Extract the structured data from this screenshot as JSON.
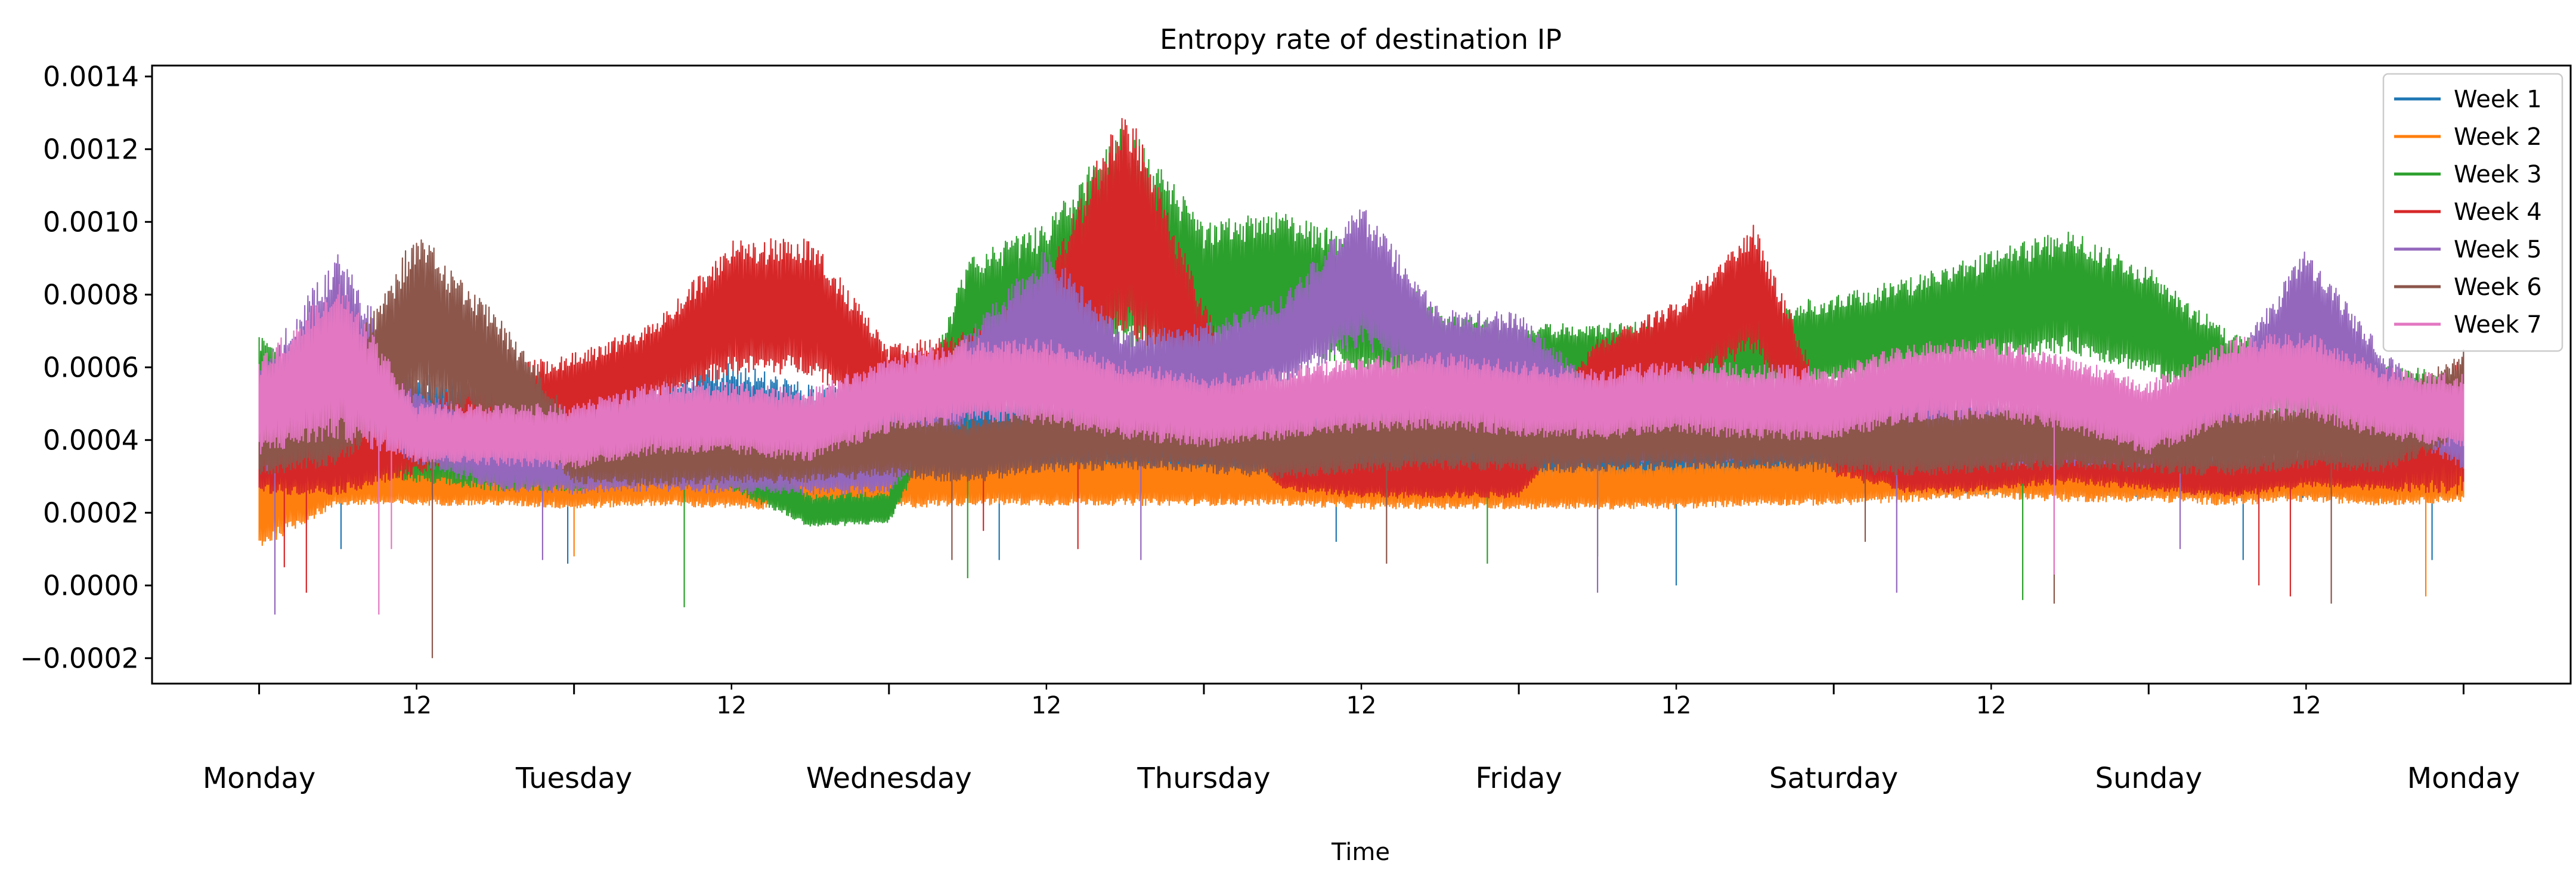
{
  "chart_data": {
    "type": "line",
    "title": "Entropy rate of destination IP",
    "xlabel": "Time",
    "ylabel": "",
    "ylim": [
      -0.00027,
      0.00143
    ],
    "yticks": [
      -0.0002,
      0.0,
      0.0002,
      0.0004,
      0.0006,
      0.0008,
      0.001,
      0.0012,
      0.0014
    ],
    "ytick_labels": [
      "−0.0002",
      "0.0000",
      "0.0002",
      "0.0004",
      "0.0006",
      "0.0008",
      "0.0010",
      "0.0012",
      "0.0014"
    ],
    "x_unit": "day of week (0 = Monday 00:00, 7 = next Monday 00:00)",
    "xlim": [
      -0.34,
      7.34
    ],
    "x_major_ticks": [
      0,
      1,
      2,
      3,
      4,
      5,
      6,
      7
    ],
    "x_major_labels": [
      "Monday",
      "Tuesday",
      "Wednesday",
      "Thursday",
      "Friday",
      "Saturday",
      "Sunday",
      "Monday"
    ],
    "x_minor_ticks": [
      0.5,
      1.5,
      2.5,
      3.5,
      4.5,
      5.5,
      6.5
    ],
    "x_minor_label": "12",
    "legend_position": "upper right",
    "grid": false,
    "x": [
      0,
      0.25,
      0.5,
      0.75,
      1,
      1.25,
      1.5,
      1.75,
      2,
      2.25,
      2.5,
      2.75,
      3,
      3.25,
      3.5,
      3.75,
      4,
      4.25,
      4.5,
      4.75,
      5,
      5.25,
      5.5,
      5.75,
      6,
      6.25,
      6.5,
      6.75,
      7
    ],
    "series": [
      {
        "name": "Week 1",
        "color": "#1f77b4",
        "values": [
          0.00045,
          0.00044,
          0.00046,
          0.00045,
          0.00044,
          0.00043,
          0.00048,
          0.00044,
          0.00044,
          0.00045,
          0.00044,
          0.00043,
          0.00044,
          0.00043,
          0.00045,
          0.00043,
          0.00042,
          0.00043,
          0.00042,
          0.00033,
          0.00033,
          0.00031,
          0.00032,
          0.00033,
          0.00031,
          0.00032,
          0.00031,
          0.0003,
          0.0003
        ],
        "low": [
          0.00018,
          0.0003,
          0.00032,
          0.00028,
          0.00028,
          0.00028,
          0.00027,
          0.00028,
          0.00027,
          0.00026,
          0.00026,
          0.00026,
          0.00026,
          0.00026,
          0.00026,
          0.00027,
          0.00026,
          0.00026,
          0.00025,
          0.00027,
          0.00027,
          0.00025,
          0.00025,
          0.00025,
          0.00024,
          0.00025,
          0.00024,
          0.00024,
          0.00024
        ],
        "high": [
          0.00062,
          0.00058,
          0.00058,
          0.00058,
          0.00058,
          0.00058,
          0.00062,
          0.00055,
          0.00056,
          0.00056,
          0.00054,
          0.00053,
          0.00054,
          0.00052,
          0.00054,
          0.00052,
          0.00053,
          0.00052,
          0.00051,
          0.0004,
          0.0004,
          0.00038,
          0.00038,
          0.00038,
          0.00037,
          0.00037,
          0.00036,
          0.00036,
          0.00036
        ],
        "dips": [
          [
            0.26,
            0.0001
          ],
          [
            0.98,
            6e-05
          ],
          [
            2.35,
            7e-05
          ],
          [
            3.42,
            0.00012
          ],
          [
            4.5,
            0.0
          ],
          [
            6.3,
            7e-05
          ],
          [
            6.9,
            7e-05
          ]
        ]
      },
      {
        "name": "Week 2",
        "color": "#ff7f0e",
        "values": [
          0.0003,
          0.00029,
          0.00029,
          0.00028,
          0.00027,
          0.00028,
          0.00027,
          0.00027,
          0.00029,
          0.0003,
          0.00029,
          0.00029,
          0.00028,
          0.00028,
          0.00027,
          0.00027,
          0.00027,
          0.00027,
          0.00027,
          0.00028,
          0.00029,
          0.0003,
          0.00031,
          0.0003,
          0.0003,
          0.00029,
          0.00029,
          0.00028,
          0.00029
        ],
        "low": [
          0.0001,
          0.00022,
          0.00022,
          0.00022,
          0.00021,
          0.00022,
          0.00021,
          0.00021,
          0.00021,
          0.00022,
          0.00022,
          0.00022,
          0.00022,
          0.00022,
          0.00021,
          0.00021,
          0.00021,
          0.00021,
          0.00021,
          0.00022,
          0.00022,
          0.00023,
          0.00024,
          0.00023,
          0.00023,
          0.00022,
          0.00023,
          0.00022,
          0.00023
        ],
        "high": [
          0.00036,
          0.00035,
          0.00034,
          0.00034,
          0.00034,
          0.00035,
          0.00034,
          0.00034,
          0.00036,
          0.00037,
          0.00036,
          0.00036,
          0.00035,
          0.00035,
          0.00034,
          0.00034,
          0.00034,
          0.00034,
          0.00034,
          0.00035,
          0.00036,
          0.00037,
          0.00038,
          0.00037,
          0.00037,
          0.00036,
          0.00036,
          0.00035,
          0.00036
        ],
        "dips": [
          [
            1.0,
            8e-05
          ],
          [
            6.88,
            -3e-05
          ]
        ]
      },
      {
        "name": "Week 3",
        "color": "#2ca02c",
        "values": [
          0.0005,
          0.0004,
          0.00035,
          0.00032,
          0.00032,
          0.00035,
          0.00033,
          0.0002,
          0.00021,
          0.00075,
          0.0008,
          0.001,
          0.00085,
          0.0009,
          0.0008,
          0.00065,
          0.00062,
          0.00062,
          0.00062,
          0.00064,
          0.00068,
          0.00072,
          0.00078,
          0.00085,
          0.00075,
          0.0006,
          0.00055,
          0.00052,
          0.0005
        ],
        "low": [
          0.00035,
          0.00032,
          0.00028,
          0.00026,
          0.00026,
          0.00028,
          0.00026,
          0.00016,
          0.00017,
          0.00058,
          0.0006,
          0.00064,
          0.00062,
          0.00066,
          0.00058,
          0.00054,
          0.00052,
          0.00052,
          0.00052,
          0.00053,
          0.00055,
          0.00058,
          0.00062,
          0.00064,
          0.00058,
          0.00048,
          0.00045,
          0.00043,
          0.00042
        ],
        "high": [
          0.0007,
          0.0006,
          0.00046,
          0.00042,
          0.00042,
          0.00045,
          0.00042,
          0.00025,
          0.00026,
          0.0009,
          0.001,
          0.00128,
          0.001,
          0.00103,
          0.00095,
          0.00075,
          0.00072,
          0.00072,
          0.00073,
          0.00076,
          0.0008,
          0.00085,
          0.00092,
          0.00098,
          0.00088,
          0.0007,
          0.00064,
          0.00061,
          0.00058
        ],
        "dips": [
          [
            1.35,
            -6e-05
          ],
          [
            2.25,
            2e-05
          ],
          [
            3.9,
            6e-05
          ],
          [
            4.25,
            8e-05
          ],
          [
            5.6,
            -4e-05
          ]
        ]
      },
      {
        "name": "Week 4",
        "color": "#d62728",
        "values": [
          0.00035,
          0.00035,
          0.0004,
          0.0005,
          0.00053,
          0.0006,
          0.00075,
          0.0008,
          0.00055,
          0.00058,
          0.0007,
          0.00095,
          0.00065,
          0.00032,
          0.0003,
          0.0003,
          0.0003,
          0.00058,
          0.00065,
          0.00085,
          0.00038,
          0.00032,
          0.00033,
          0.00035,
          0.00032,
          0.0003,
          0.00033,
          0.00032,
          0.00031
        ],
        "low": [
          0.00025,
          0.00025,
          0.0003,
          0.00036,
          0.00042,
          0.0005,
          0.00058,
          0.00058,
          0.00045,
          0.00046,
          0.00055,
          0.00068,
          0.0005,
          0.00026,
          0.00024,
          0.00024,
          0.00024,
          0.0005,
          0.00055,
          0.00064,
          0.0003,
          0.00025,
          0.00026,
          0.00028,
          0.00026,
          0.00024,
          0.00027,
          0.00026,
          0.00025
        ],
        "high": [
          0.00045,
          0.00044,
          0.0005,
          0.0006,
          0.00064,
          0.00072,
          0.00095,
          0.00096,
          0.00066,
          0.0007,
          0.00086,
          0.00134,
          0.00078,
          0.00038,
          0.00037,
          0.00037,
          0.00037,
          0.00068,
          0.00078,
          0.001,
          0.00045,
          0.00038,
          0.00039,
          0.00041,
          0.00039,
          0.00036,
          0.00039,
          0.00038,
          0.00064
        ],
        "dips": [
          [
            0.08,
            5e-05
          ],
          [
            0.15,
            -2e-05
          ],
          [
            2.3,
            0.00015
          ],
          [
            2.6,
            0.0001
          ],
          [
            6.35,
            0.0
          ],
          [
            6.45,
            -3e-05
          ]
        ]
      },
      {
        "name": "Week 5",
        "color": "#9467bd",
        "values": [
          0.00045,
          0.00065,
          0.00045,
          0.00035,
          0.00033,
          0.00034,
          0.00033,
          0.00033,
          0.00033,
          0.00058,
          0.0008,
          0.00058,
          0.0006,
          0.00068,
          0.0009,
          0.00065,
          0.00062,
          0.00045,
          0.00042,
          0.00044,
          0.00045,
          0.00044,
          0.00042,
          0.00042,
          0.0004,
          0.00048,
          0.0008,
          0.00055,
          0.0004
        ],
        "low": [
          0.0003,
          0.00045,
          0.00033,
          0.00026,
          0.00025,
          0.00026,
          0.00025,
          0.00025,
          0.00025,
          0.00045,
          0.00058,
          0.00046,
          0.00048,
          0.00055,
          0.00066,
          0.00052,
          0.00048,
          0.00035,
          0.00033,
          0.00034,
          0.00035,
          0.00034,
          0.00033,
          0.00033,
          0.00032,
          0.00037,
          0.00058,
          0.00043,
          0.00032
        ],
        "high": [
          0.0006,
          0.00092,
          0.00056,
          0.00044,
          0.00042,
          0.00043,
          0.00042,
          0.00042,
          0.00042,
          0.0007,
          0.00093,
          0.0007,
          0.00072,
          0.0008,
          0.00105,
          0.00076,
          0.00075,
          0.00055,
          0.00052,
          0.00054,
          0.00055,
          0.00054,
          0.00052,
          0.00052,
          0.0005,
          0.0006,
          0.00093,
          0.00064,
          0.00048
        ],
        "dips": [
          [
            0.05,
            -8e-05
          ],
          [
            0.9,
            7e-05
          ],
          [
            2.8,
            7e-05
          ],
          [
            4.25,
            -2e-05
          ],
          [
            5.2,
            -2e-05
          ],
          [
            6.1,
            0.0001
          ]
        ]
      },
      {
        "name": "Week 6",
        "color": "#8c564b",
        "values": [
          0.0004,
          0.00045,
          0.0007,
          0.0006,
          0.00038,
          0.00037,
          0.00038,
          0.00038,
          0.0004,
          0.00038,
          0.00042,
          0.00043,
          0.00042,
          0.0004,
          0.00042,
          0.00043,
          0.00042,
          0.00042,
          0.00043,
          0.00043,
          0.00042,
          0.0004,
          0.00042,
          0.00043,
          0.00042,
          0.00041,
          0.00043,
          0.00042,
          0.00055
        ],
        "low": [
          0.0003,
          0.00033,
          0.0005,
          0.00045,
          0.00028,
          0.00027,
          0.00028,
          0.00028,
          0.0003,
          0.00028,
          0.00031,
          0.00032,
          0.00031,
          0.00029,
          0.00031,
          0.00032,
          0.00031,
          0.00031,
          0.00032,
          0.00032,
          0.00031,
          0.0003,
          0.00031,
          0.00032,
          0.00031,
          0.0003,
          0.00032,
          0.00031,
          0.0004
        ],
        "high": [
          0.0005,
          0.00058,
          0.00098,
          0.00075,
          0.00046,
          0.00045,
          0.00046,
          0.00046,
          0.00048,
          0.00046,
          0.00051,
          0.00052,
          0.0005,
          0.00048,
          0.0005,
          0.00052,
          0.0005,
          0.0005,
          0.00052,
          0.00052,
          0.0005,
          0.00049,
          0.0005,
          0.00052,
          0.0005,
          0.00049,
          0.00052,
          0.00051,
          0.00065
        ],
        "dips": [
          [
            0.55,
            -0.0002
          ],
          [
            2.2,
            7e-05
          ],
          [
            3.58,
            6e-05
          ],
          [
            5.1,
            0.00012
          ],
          [
            5.7,
            -5e-05
          ],
          [
            6.58,
            -5e-05
          ]
        ]
      },
      {
        "name": "Week 7",
        "color": "#e377c2",
        "values": [
          0.00048,
          0.00055,
          0.00042,
          0.00042,
          0.0004,
          0.00045,
          0.00045,
          0.00043,
          0.00052,
          0.00055,
          0.00055,
          0.0005,
          0.00048,
          0.0005,
          0.00052,
          0.00053,
          0.00052,
          0.0005,
          0.00052,
          0.0005,
          0.0005,
          0.00055,
          0.00056,
          0.00052,
          0.00045,
          0.00055,
          0.00058,
          0.0005,
          0.00048
        ],
        "low": [
          0.00036,
          0.0004,
          0.00034,
          0.00033,
          0.00032,
          0.00036,
          0.00036,
          0.00034,
          0.00042,
          0.00045,
          0.00044,
          0.0004,
          0.00038,
          0.0004,
          0.00042,
          0.00043,
          0.00041,
          0.0004,
          0.00042,
          0.0004,
          0.0004,
          0.00045,
          0.00046,
          0.00042,
          0.00036,
          0.00044,
          0.00046,
          0.0004,
          0.00038
        ],
        "high": [
          0.00062,
          0.00085,
          0.0005,
          0.0005,
          0.0005,
          0.00056,
          0.00056,
          0.00054,
          0.00063,
          0.00068,
          0.00068,
          0.00062,
          0.00058,
          0.0006,
          0.00063,
          0.00064,
          0.00062,
          0.0006,
          0.00062,
          0.00061,
          0.0006,
          0.00067,
          0.00068,
          0.00063,
          0.00056,
          0.00068,
          0.0007,
          0.0006,
          0.00058
        ],
        "dips": [
          [
            0.38,
            -8e-05
          ],
          [
            0.42,
            0.0001
          ],
          [
            5.7,
            3e-05
          ]
        ]
      }
    ]
  }
}
